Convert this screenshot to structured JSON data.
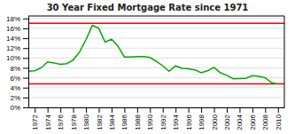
{
  "chart_data": {
    "type": "line",
    "title": "30 Year Fixed Mortgage Rate since 1971",
    "x": [
      1971,
      1972,
      1973,
      1974,
      1975,
      1976,
      1977,
      1978,
      1979,
      1980,
      1981,
      1982,
      1983,
      1984,
      1985,
      1986,
      1987,
      1988,
      1989,
      1990,
      1991,
      1992,
      1993,
      1994,
      1995,
      1996,
      1997,
      1998,
      1999,
      2000,
      2001,
      2002,
      2003,
      2004,
      2005,
      2006,
      2007,
      2008,
      2009,
      2010
    ],
    "values": [
      7.3,
      7.4,
      8.0,
      9.2,
      9.0,
      8.7,
      8.85,
      9.6,
      11.2,
      13.7,
      16.6,
      16.0,
      13.2,
      13.8,
      12.4,
      10.2,
      10.2,
      10.3,
      10.3,
      10.1,
      9.3,
      8.4,
      7.3,
      8.4,
      7.9,
      7.8,
      7.6,
      7.0,
      7.4,
      8.1,
      7.0,
      6.5,
      5.8,
      5.84,
      5.87,
      6.4,
      6.3,
      6.0,
      5.0,
      4.7
    ],
    "color": "#00aa00",
    "hlines": [
      {
        "y": 17.0,
        "color": "#ff0000"
      },
      {
        "y": 4.75,
        "color": "#ff0000"
      }
    ],
    "xlim": [
      1971,
      2011
    ],
    "xticks": [
      1972,
      1974,
      1976,
      1978,
      1980,
      1982,
      1984,
      1986,
      1988,
      1990,
      1992,
      1994,
      1996,
      1998,
      2000,
      2002,
      2004,
      2006,
      2008,
      2010
    ],
    "ylim": [
      0,
      18.5
    ],
    "yticks": [
      {
        "value": 0,
        "label": "0%"
      },
      {
        "value": 2,
        "label": "2%"
      },
      {
        "value": 4,
        "label": "4%"
      },
      {
        "value": 6,
        "label": "6%"
      },
      {
        "value": 8,
        "label": "8%"
      },
      {
        "value": 10,
        "label": "10%"
      },
      {
        "value": 12,
        "label": "12%"
      },
      {
        "value": 14,
        "label": "14%"
      },
      {
        "value": 16,
        "label": "16%"
      },
      {
        "value": 18,
        "label": "18%"
      }
    ],
    "grid": true
  }
}
